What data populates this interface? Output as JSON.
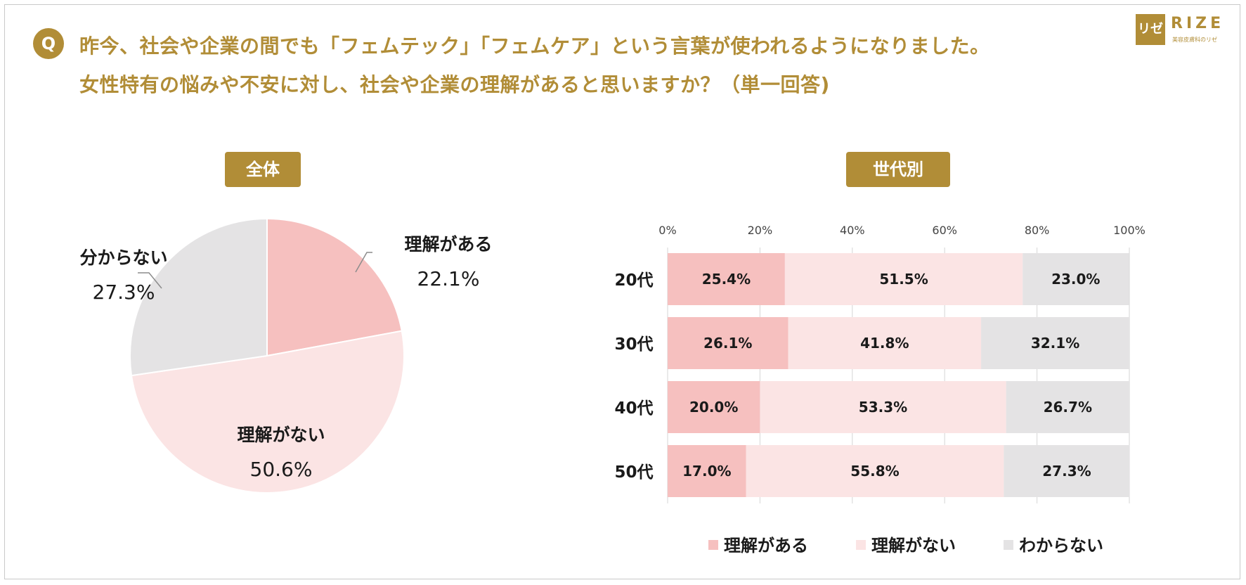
{
  "header": {
    "q_badge": "Q",
    "question_line1": "昨今、社会や企業の間でも「フェムテック」「フェムケア」という言葉が使われるようになりました。",
    "question_line2": "女性特有の悩みや不安に対し、社会や企業の理解があると思いますか？（単一回答)",
    "logo_mark": "リゼ",
    "logo_name": "RIZE",
    "logo_subtitle": "美容皮膚科のリゼ"
  },
  "sections": {
    "overall_label": "全体",
    "generation_label": "世代別"
  },
  "colors": {
    "accent": "#b18d37",
    "understand": "#f6c0bf",
    "not_understand": "#fbe4e4",
    "dont_know": "#e4e3e4"
  },
  "chart_data": [
    {
      "type": "pie",
      "title": "全体",
      "slices": [
        {
          "label": "理解がある",
          "value": 22.1,
          "display": "22.1%"
        },
        {
          "label": "理解がない",
          "value": 50.6,
          "display": "50.6%"
        },
        {
          "label": "分からない",
          "value": 27.3,
          "display": "27.3%"
        }
      ]
    },
    {
      "type": "bar",
      "orientation": "horizontal",
      "stacked": true,
      "title": "世代別",
      "categories": [
        "20代",
        "30代",
        "40代",
        "50代"
      ],
      "xlim": [
        0,
        100
      ],
      "xticks": [
        "0%",
        "20%",
        "40%",
        "60%",
        "80%",
        "100%"
      ],
      "series": [
        {
          "name": "理解がある",
          "values": [
            25.4,
            26.1,
            20.0,
            17.0
          ],
          "labels": [
            "25.4%",
            "26.1%",
            "20.0%",
            "17.0%"
          ]
        },
        {
          "name": "理解がない",
          "values": [
            51.5,
            41.8,
            53.3,
            55.8
          ],
          "labels": [
            "51.5%",
            "41.8%",
            "53.3%",
            "55.8%"
          ]
        },
        {
          "name": "わからない",
          "values": [
            23.0,
            32.1,
            26.7,
            27.3
          ],
          "labels": [
            "23.0%",
            "32.1%",
            "26.7%",
            "27.3%"
          ]
        }
      ]
    }
  ]
}
